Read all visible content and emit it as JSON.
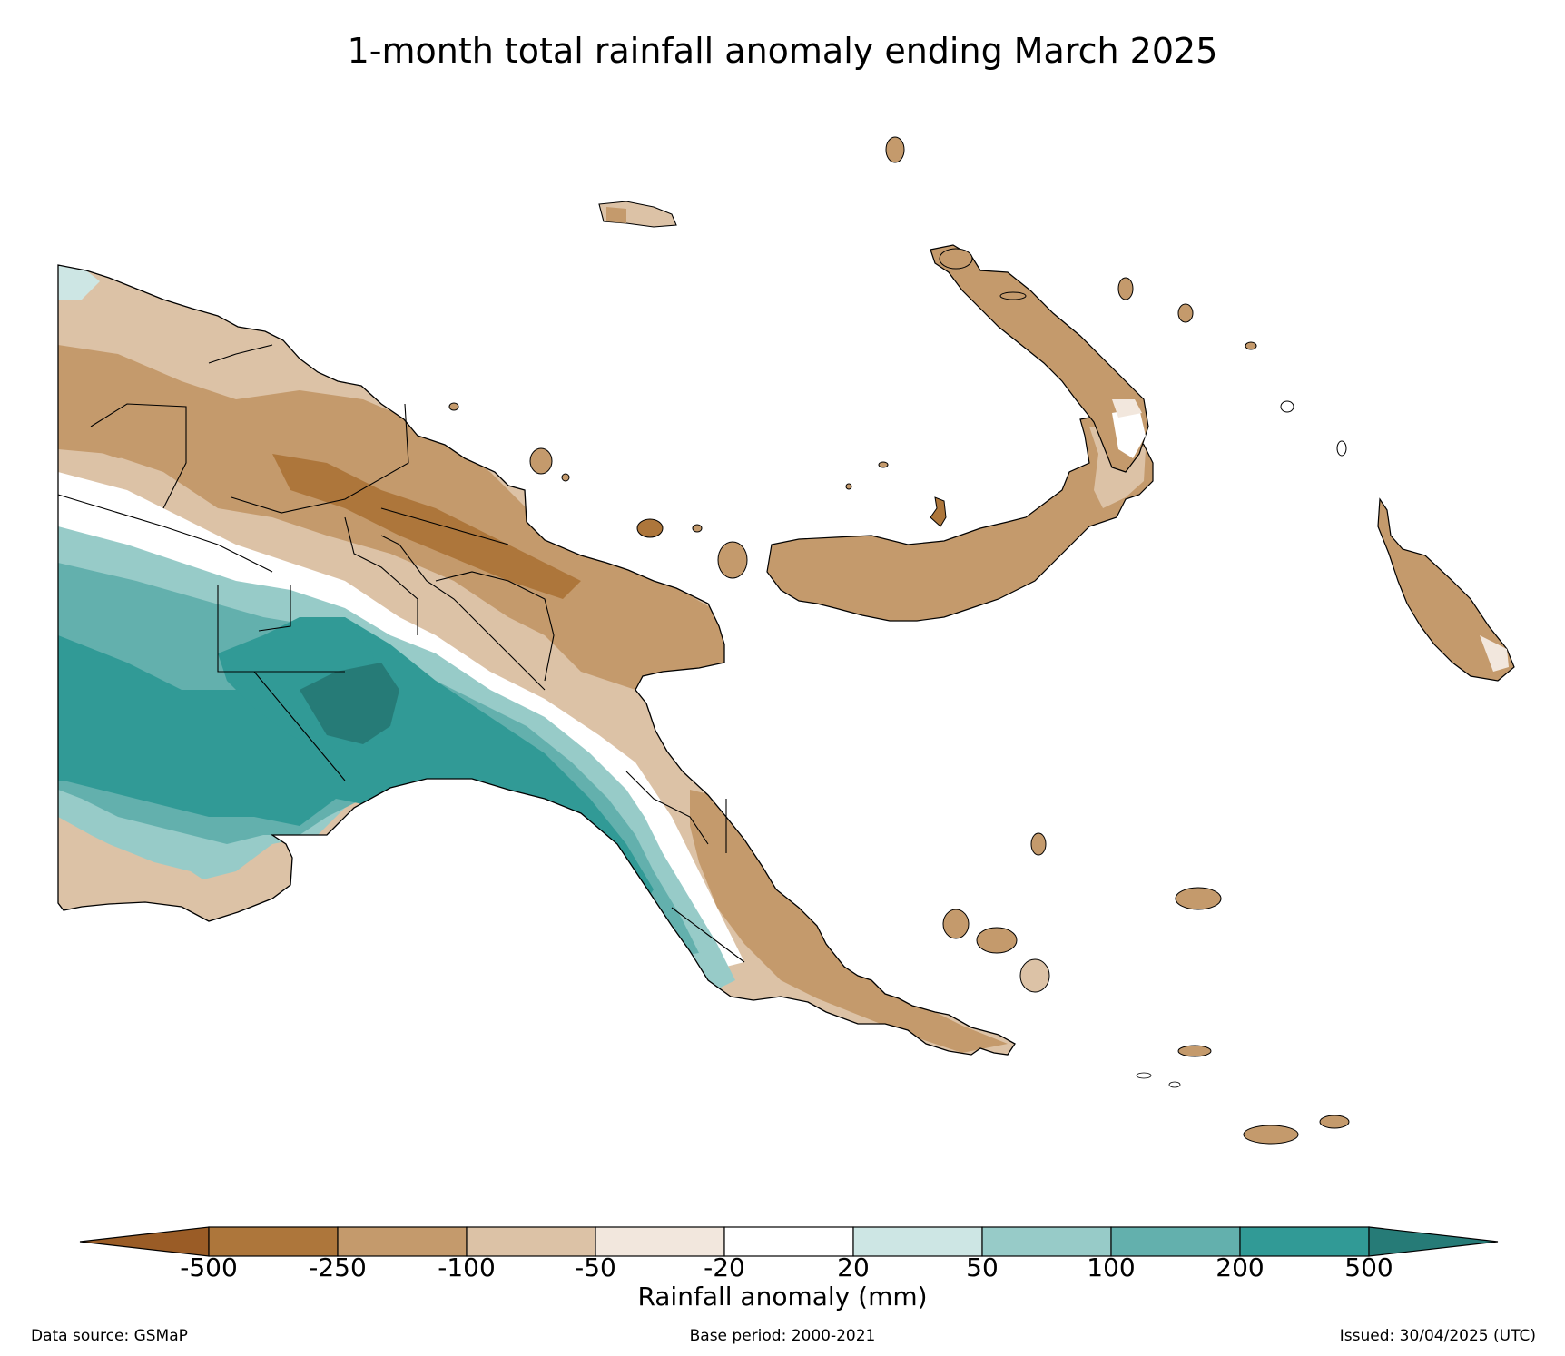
{
  "title": "1-month total rainfall anomaly ending March 2025",
  "colorbar": {
    "label": "Rainfall anomaly (mm)",
    "ticks": [
      "-500",
      "-250",
      "-100",
      "-50",
      "-20",
      "20",
      "50",
      "100",
      "200",
      "500"
    ],
    "bins": [
      {
        "range": "< -500",
        "color": "#9a5c26"
      },
      {
        "range": "-500 to -250",
        "color": "#ad763b"
      },
      {
        "range": "-250 to -100",
        "color": "#c49a6c"
      },
      {
        "range": "-100 to -50",
        "color": "#dcc2a6"
      },
      {
        "range": "-50 to -20",
        "color": "#f2e7dd"
      },
      {
        "range": "-20 to 20",
        "color": "#ffffff"
      },
      {
        "range": "20 to 50",
        "color": "#cde6e4"
      },
      {
        "range": "50 to 100",
        "color": "#97cbc8"
      },
      {
        "range": "100 to 200",
        "color": "#63b0ad"
      },
      {
        "range": "200 to 500",
        "color": "#319a96"
      },
      {
        "range": "> 500",
        "color": "#267b77"
      }
    ]
  },
  "footer": {
    "source": "Data source: GSMaP",
    "base_period": "Base period: 2000-2021",
    "issued": "Issued: 30/04/2025 (UTC)"
  }
}
